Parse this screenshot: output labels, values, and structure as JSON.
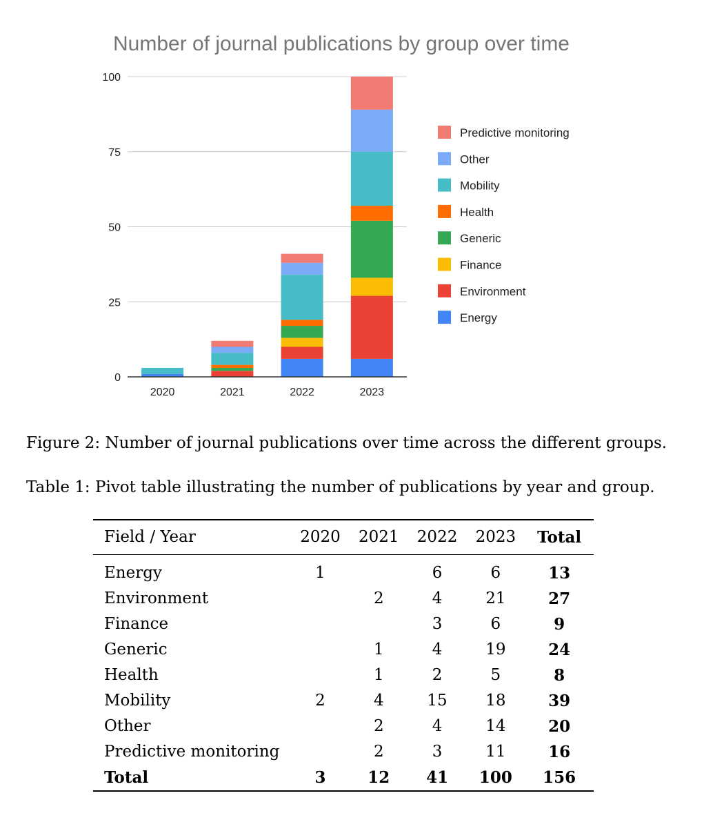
{
  "chart_data": {
    "type": "bar",
    "stacked": true,
    "title": "Number of journal publications by group over time",
    "categories": [
      "2020",
      "2021",
      "2022",
      "2023"
    ],
    "ylim": [
      0,
      100
    ],
    "yticks": [
      0,
      25,
      50,
      75,
      100
    ],
    "grid": true,
    "legend": "right",
    "series": [
      {
        "name": "Energy",
        "color": "#4285F4",
        "values": [
          1,
          0,
          6,
          6
        ]
      },
      {
        "name": "Environment",
        "color": "#EA4335",
        "values": [
          0,
          2,
          4,
          21
        ]
      },
      {
        "name": "Finance",
        "color": "#FBBC04",
        "values": [
          0,
          0,
          3,
          6
        ]
      },
      {
        "name": "Generic",
        "color": "#34A853",
        "values": [
          0,
          1,
          4,
          19
        ]
      },
      {
        "name": "Health",
        "color": "#FF6D01",
        "values": [
          0,
          1,
          2,
          5
        ]
      },
      {
        "name": "Mobility",
        "color": "#46BDC6",
        "values": [
          2,
          4,
          15,
          18
        ]
      },
      {
        "name": "Other",
        "color": "#7BAAF7",
        "values": [
          0,
          2,
          4,
          14
        ]
      },
      {
        "name": "Predictive monitoring",
        "color": "#F07B72",
        "values": [
          0,
          2,
          3,
          11
        ]
      }
    ]
  },
  "figure_caption": "Figure 2: Number of journal publications over time across the different groups.",
  "table_caption": "Table 1: Pivot table illustrating the number of publications by year and group.",
  "table": {
    "headers": [
      "Field / Year",
      "2020",
      "2021",
      "2022",
      "2023",
      "Total"
    ],
    "rows": [
      [
        "Energy",
        "1",
        "",
        "6",
        "6",
        "13"
      ],
      [
        "Environment",
        "",
        "2",
        "4",
        "21",
        "27"
      ],
      [
        "Finance",
        "",
        "",
        "3",
        "6",
        "9"
      ],
      [
        "Generic",
        "",
        "1",
        "4",
        "19",
        "24"
      ],
      [
        "Health",
        "",
        "1",
        "2",
        "5",
        "8"
      ],
      [
        "Mobility",
        "2",
        "4",
        "15",
        "18",
        "39"
      ],
      [
        "Other",
        "",
        "2",
        "4",
        "14",
        "20"
      ],
      [
        "Predictive monitoring",
        "",
        "2",
        "3",
        "11",
        "16"
      ]
    ],
    "total_row": [
      "Total",
      "3",
      "12",
      "41",
      "100",
      "156"
    ]
  }
}
